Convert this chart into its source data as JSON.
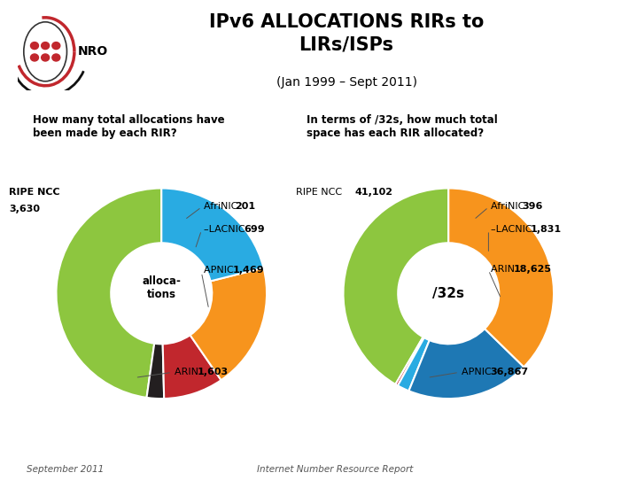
{
  "title": "IPv6 ALLOCATIONS RIRs to\nLIRs/ISPs",
  "subtitle": "(Jan 1999 – Sept 2011)",
  "question1": "How many total allocations have\nbeen made by each RIR?",
  "question2": "In terms of /32s, how much total\nspace has each RIR allocated?",
  "footer_left": "September 2011",
  "footer_right": "Internet Number Resource Report",
  "pie1_values": [
    3630,
    201,
    699,
    1469,
    1603
  ],
  "pie1_colors": [
    "#8dc63f",
    "#231f20",
    "#c1272d",
    "#f7941d",
    "#29abe2"
  ],
  "pie1_labels_plain": [
    "RIPE NCC",
    "AfriNIC",
    "LACNIC",
    "APNIC",
    "ARIN"
  ],
  "pie1_labels_num": [
    "3,630",
    "201",
    "699",
    "1,469",
    "1,603"
  ],
  "pie1_center_text": "alloca-\ntions",
  "pie2_values": [
    41102,
    396,
    1831,
    18625,
    36867
  ],
  "pie2_colors": [
    "#8dc63f",
    "#c1272d",
    "#29abe2",
    "#29abe2",
    "#f7941d"
  ],
  "pie2_labels_plain": [
    "RIPE NCC",
    "AfriNIC",
    "LACNIC",
    "ARIN",
    "APNIC"
  ],
  "pie2_labels_num": [
    "41,102",
    "396",
    "1,831",
    "18,625",
    "36,867"
  ],
  "pie2_center_text": "/32s",
  "bg_color": "#ffffff",
  "footer_bg": "#d8d8d8",
  "sidebar_color": "#cc2222"
}
